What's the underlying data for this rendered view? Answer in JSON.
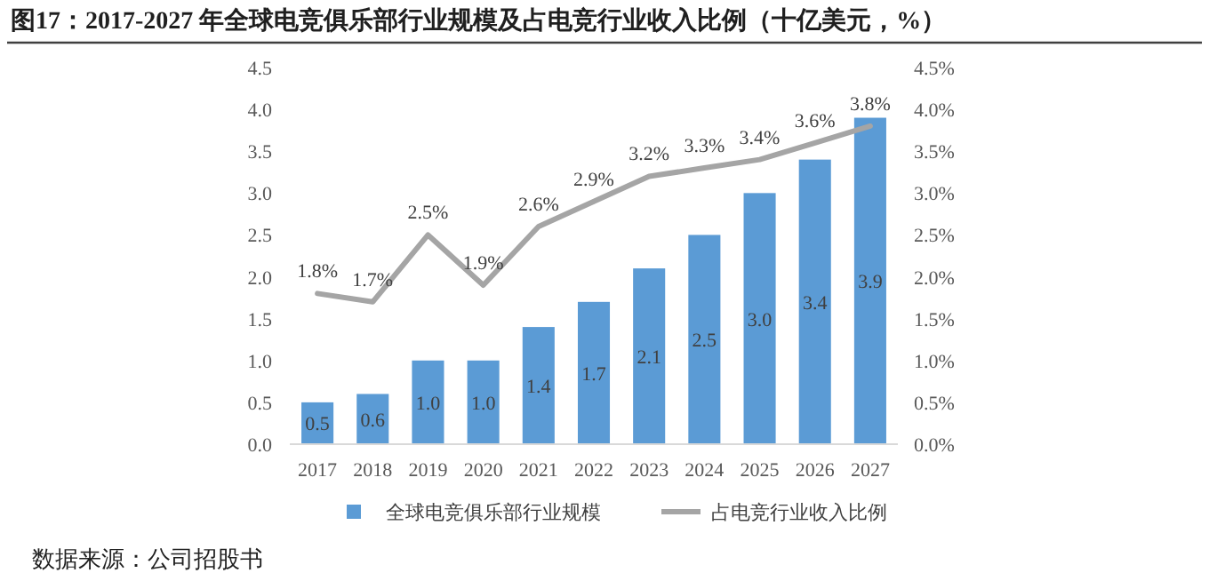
{
  "chart_data": {
    "type": "bar",
    "title": "图17：2017-2027 年全球电竞俱乐部行业规模及占电竞行业收入比例（十亿美元，%）",
    "categories": [
      "2017",
      "2018",
      "2019",
      "2020",
      "2021",
      "2022",
      "2023",
      "2024",
      "2025",
      "2026",
      "2027"
    ],
    "series": [
      {
        "name": "全球电竞俱乐部行业规模",
        "type": "bar",
        "color": "#5b9bd5",
        "values": [
          0.5,
          0.6,
          1.0,
          1.0,
          1.4,
          1.7,
          2.1,
          2.5,
          3.0,
          3.4,
          3.9
        ],
        "value_labels": [
          "0.5",
          "0.6",
          "1.0",
          "1.0",
          "1.4",
          "1.7",
          "2.1",
          "2.5",
          "3.0",
          "3.4",
          "3.9"
        ]
      },
      {
        "name": "占电竞行业收入比例",
        "type": "line",
        "axis": "y2",
        "color": "#a5a5a5",
        "values": [
          1.8,
          1.7,
          2.5,
          1.9,
          2.6,
          2.9,
          3.2,
          3.3,
          3.4,
          3.6,
          3.8
        ],
        "value_labels": [
          "1.8%",
          "1.7%",
          "2.5%",
          "1.9%",
          "2.6%",
          "2.9%",
          "3.2%",
          "3.3%",
          "3.4%",
          "3.6%",
          "3.8%"
        ]
      }
    ],
    "ylim": [
      0,
      4.5
    ],
    "yticks": [
      {
        "value": 0,
        "label": "0.0"
      },
      {
        "value": 0.5,
        "label": "0.5"
      },
      {
        "value": 1,
        "label": "1.0"
      },
      {
        "value": 1.5,
        "label": "1.5"
      },
      {
        "value": 2,
        "label": "2.0"
      },
      {
        "value": 2.5,
        "label": "2.5"
      },
      {
        "value": 3,
        "label": "3.0"
      },
      {
        "value": 3.5,
        "label": "3.5"
      },
      {
        "value": 4,
        "label": "4.0"
      },
      {
        "value": 4.5,
        "label": "4.5"
      }
    ],
    "y2lim": [
      0,
      4.5
    ],
    "y2ticks": [
      {
        "value": 0,
        "label": "0.0%"
      },
      {
        "value": 0.5,
        "label": "0.5%"
      },
      {
        "value": 1,
        "label": "1.0%"
      },
      {
        "value": 1.5,
        "label": "1.5%"
      },
      {
        "value": 2,
        "label": "2.0%"
      },
      {
        "value": 2.5,
        "label": "2.5%"
      },
      {
        "value": 3,
        "label": "3.0%"
      },
      {
        "value": 3.5,
        "label": "3.5%"
      },
      {
        "value": 4,
        "label": "4.0%"
      },
      {
        "value": 4.5,
        "label": "4.5%"
      }
    ],
    "legend": "bottom",
    "annotations": [
      "数据来源：公司招股书"
    ]
  }
}
